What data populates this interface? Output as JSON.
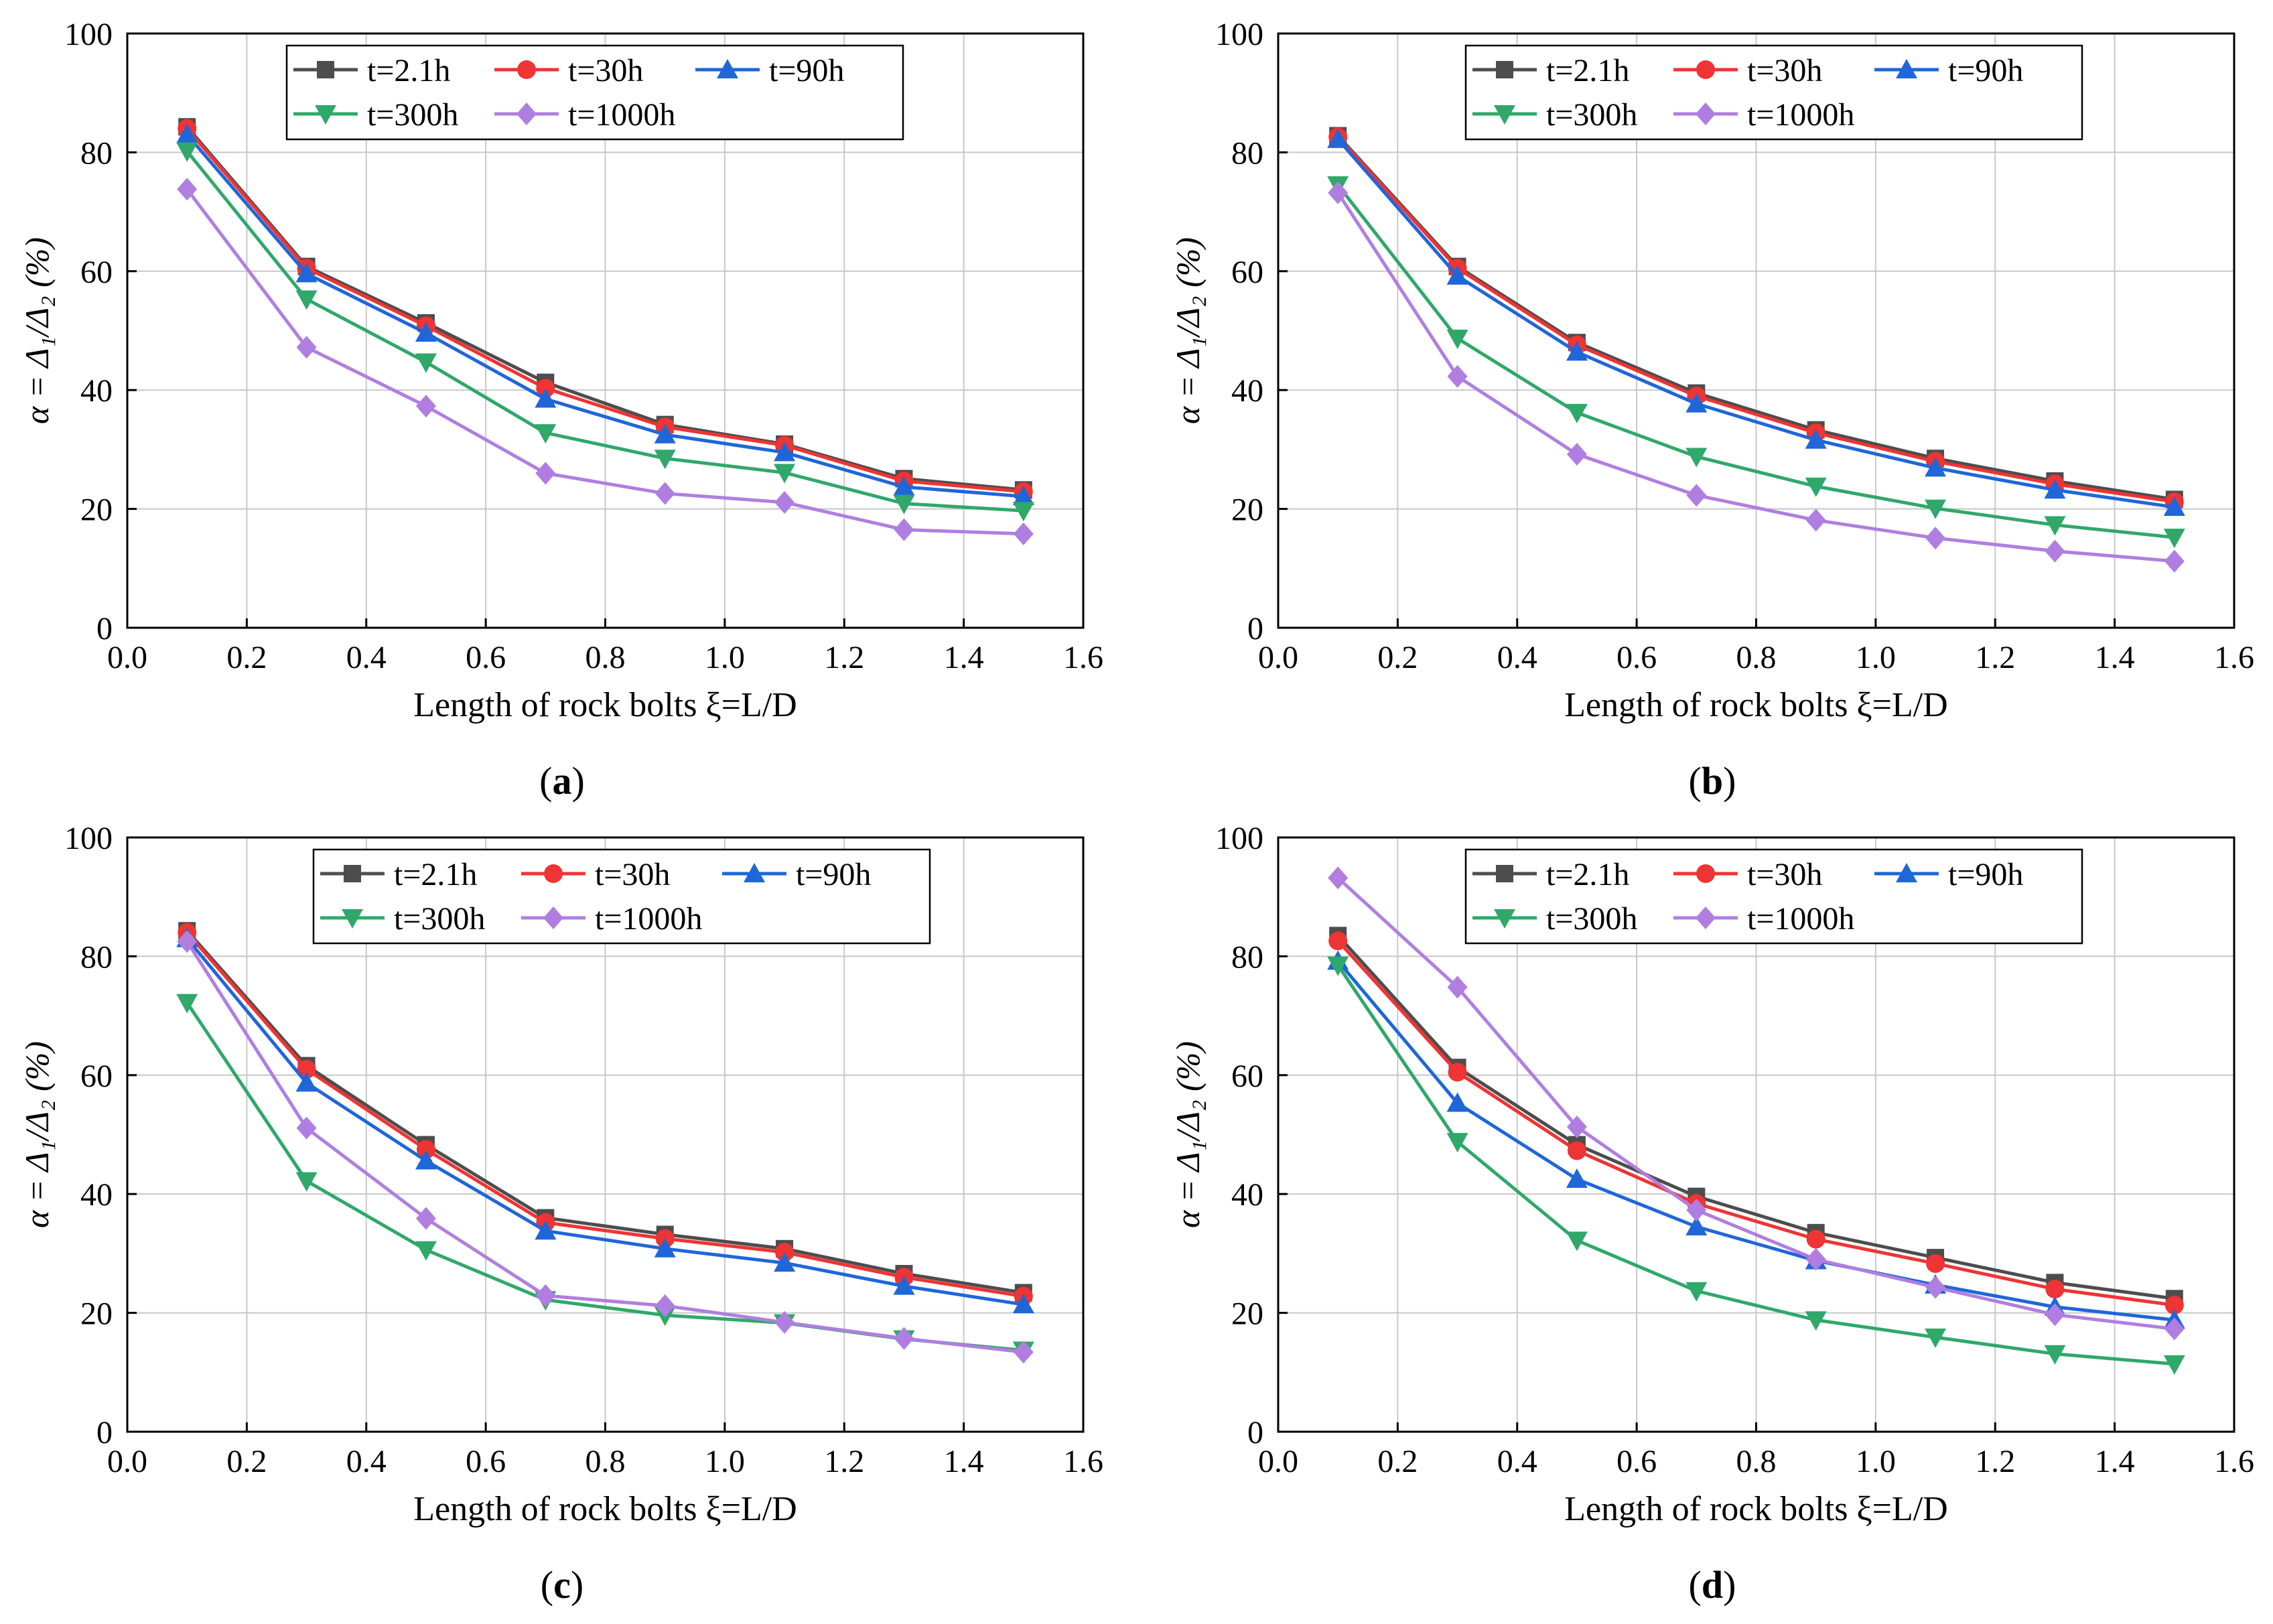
{
  "chart_data": [
    {
      "type": "line",
      "panel_label": "a",
      "xlabel": "Length of rock bolts ξ=L/D",
      "ylabel": "α = Δ₁/Δ₂ (%)",
      "xlim": [
        0.0,
        1.6
      ],
      "ylim": [
        0,
        100
      ],
      "xticks": [
        "0.0",
        "0.2",
        "0.4",
        "0.6",
        "0.8",
        "1.0",
        "1.2",
        "1.4",
        "1.6"
      ],
      "yticks": [
        "0",
        "20",
        "40",
        "60",
        "80",
        "100"
      ],
      "grid": true,
      "legend_position": "top-center",
      "x": [
        0.1,
        0.3,
        0.5,
        0.7,
        0.9,
        1.1,
        1.3,
        1.5
      ],
      "series": [
        {
          "name": "t=2.1h",
          "color": "#4d4d4d",
          "marker": "square",
          "values": [
            84.3,
            60.8,
            51.3,
            41.3,
            34.2,
            30.9,
            25.1,
            23.2
          ]
        },
        {
          "name": "t=30h",
          "color": "#ee3434",
          "marker": "circle",
          "values": [
            84.0,
            60.5,
            50.8,
            40.3,
            33.8,
            30.7,
            24.7,
            22.9
          ]
        },
        {
          "name": "t=90h",
          "color": "#1f66d9",
          "marker": "triangle-up",
          "values": [
            83.0,
            59.6,
            49.6,
            38.5,
            32.5,
            29.5,
            23.7,
            22.1
          ]
        },
        {
          "name": "t=300h",
          "color": "#2fa86a",
          "marker": "triangle-down",
          "values": [
            80.2,
            55.3,
            44.7,
            32.8,
            28.5,
            26.1,
            20.9,
            19.7
          ]
        },
        {
          "name": "t=1000h",
          "color": "#b07ee0",
          "marker": "diamond",
          "values": [
            73.8,
            47.2,
            37.3,
            26.0,
            22.6,
            21.1,
            16.5,
            15.8
          ]
        }
      ]
    },
    {
      "type": "line",
      "panel_label": "b",
      "xlabel": "Length of rock bolts ξ=L/D",
      "ylabel": "α = Δ₁/Δ₂ (%)",
      "xlim": [
        0.0,
        1.6
      ],
      "ylim": [
        0,
        100
      ],
      "xticks": [
        "0.0",
        "0.2",
        "0.4",
        "0.6",
        "0.8",
        "1.0",
        "1.2",
        "1.4",
        "1.6"
      ],
      "yticks": [
        "0",
        "20",
        "40",
        "60",
        "80",
        "100"
      ],
      "grid": true,
      "legend_position": "top-center",
      "x": [
        0.1,
        0.3,
        0.5,
        0.7,
        0.9,
        1.1,
        1.3,
        1.5
      ],
      "series": [
        {
          "name": "t=2.1h",
          "color": "#4d4d4d",
          "marker": "square",
          "values": [
            82.8,
            60.8,
            48.0,
            39.5,
            33.3,
            28.5,
            24.7,
            21.6
          ]
        },
        {
          "name": "t=30h",
          "color": "#ee3434",
          "marker": "circle",
          "values": [
            82.6,
            60.5,
            47.6,
            39.0,
            32.8,
            28.0,
            24.2,
            21.2
          ]
        },
        {
          "name": "t=90h",
          "color": "#1f66d9",
          "marker": "triangle-up",
          "values": [
            82.2,
            59.2,
            46.4,
            37.7,
            31.6,
            26.9,
            23.2,
            20.3
          ]
        },
        {
          "name": "t=300h",
          "color": "#2fa86a",
          "marker": "triangle-down",
          "values": [
            74.5,
            48.7,
            36.2,
            28.8,
            23.8,
            20.1,
            17.3,
            15.2
          ]
        },
        {
          "name": "t=1000h",
          "color": "#b07ee0",
          "marker": "diamond",
          "values": [
            73.2,
            42.3,
            29.2,
            22.3,
            18.1,
            15.1,
            12.9,
            11.2
          ]
        }
      ]
    },
    {
      "type": "line",
      "panel_label": "c",
      "xlabel": "Length of rock bolts ξ=L/D",
      "ylabel": "α = Δ₁/Δ₂ (%)",
      "xlim": [
        0.0,
        1.6
      ],
      "ylim": [
        0,
        100
      ],
      "xticks": [
        "0.0",
        "0.2",
        "0.4",
        "0.6",
        "0.8",
        "1.0",
        "1.2",
        "1.4",
        "1.6"
      ],
      "yticks": [
        "0",
        "20",
        "40",
        "60",
        "80",
        "100"
      ],
      "grid": true,
      "legend_position": "top-right",
      "x": [
        0.1,
        0.3,
        0.5,
        0.7,
        0.9,
        1.1,
        1.3,
        1.5
      ],
      "series": [
        {
          "name": "t=2.1h",
          "color": "#4d4d4d",
          "marker": "square",
          "values": [
            84.3,
            61.6,
            48.3,
            36.0,
            33.2,
            30.8,
            26.6,
            23.4
          ]
        },
        {
          "name": "t=30h",
          "color": "#ee3434",
          "marker": "circle",
          "values": [
            84.0,
            61.0,
            47.5,
            35.2,
            32.5,
            30.2,
            26.0,
            22.8
          ]
        },
        {
          "name": "t=90h",
          "color": "#1f66d9",
          "marker": "triangle-up",
          "values": [
            83.0,
            58.7,
            45.6,
            33.8,
            30.8,
            28.4,
            24.5,
            21.4
          ]
        },
        {
          "name": "t=300h",
          "color": "#2fa86a",
          "marker": "triangle-down",
          "values": [
            72.2,
            42.2,
            30.6,
            22.2,
            19.6,
            18.3,
            15.6,
            13.7
          ]
        },
        {
          "name": "t=1000h",
          "color": "#b07ee0",
          "marker": "diamond",
          "values": [
            82.5,
            51.1,
            35.9,
            22.9,
            21.2,
            18.4,
            15.7,
            13.4
          ]
        }
      ]
    },
    {
      "type": "line",
      "panel_label": "d",
      "xlabel": "Length of rock bolts ξ=L/D",
      "ylabel": "α = Δ₁/Δ₂ (%)",
      "xlim": [
        0.0,
        1.6
      ],
      "ylim": [
        0,
        100
      ],
      "xticks": [
        "0.0",
        "0.2",
        "0.4",
        "0.6",
        "0.8",
        "1.0",
        "1.2",
        "1.4",
        "1.6"
      ],
      "yticks": [
        "0",
        "20",
        "40",
        "60",
        "80",
        "100"
      ],
      "grid": true,
      "legend_position": "top-center",
      "x": [
        0.1,
        0.3,
        0.5,
        0.7,
        0.9,
        1.1,
        1.3,
        1.5
      ],
      "series": [
        {
          "name": "t=2.1h",
          "color": "#4d4d4d",
          "marker": "square",
          "values": [
            83.5,
            61.3,
            48.3,
            39.6,
            33.5,
            29.3,
            25.1,
            22.4
          ]
        },
        {
          "name": "t=30h",
          "color": "#ee3434",
          "marker": "circle",
          "values": [
            82.6,
            60.5,
            47.3,
            38.4,
            32.4,
            28.3,
            24.0,
            21.3
          ]
        },
        {
          "name": "t=90h",
          "color": "#1f66d9",
          "marker": "triangle-up",
          "values": [
            79.2,
            55.3,
            42.5,
            34.5,
            28.8,
            24.7,
            21.0,
            18.8
          ]
        },
        {
          "name": "t=300h",
          "color": "#2fa86a",
          "marker": "triangle-down",
          "values": [
            78.5,
            48.8,
            32.2,
            23.7,
            18.8,
            15.9,
            13.1,
            11.4
          ]
        },
        {
          "name": "t=1000h",
          "color": "#b07ee0",
          "marker": "diamond",
          "values": [
            93.2,
            74.8,
            51.3,
            37.3,
            29.0,
            24.3,
            19.7,
            17.3
          ]
        }
      ]
    }
  ]
}
